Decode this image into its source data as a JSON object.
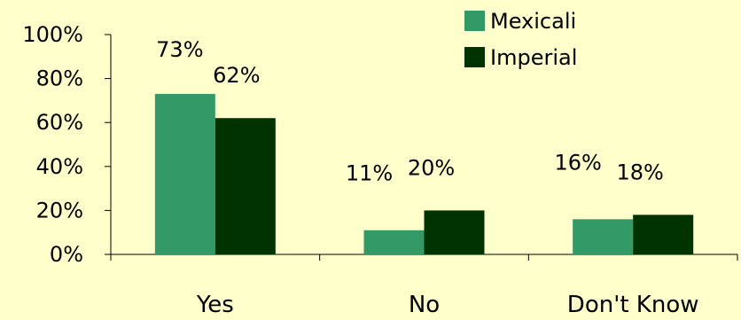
{
  "chart_data": {
    "type": "bar",
    "title": "",
    "xlabel": "",
    "ylabel": "",
    "categories": [
      "Yes",
      "No",
      "Don't Know"
    ],
    "series": [
      {
        "name": "Mexicali",
        "values": [
          73,
          11,
          16
        ],
        "color": "#339966"
      },
      {
        "name": "Imperial",
        "values": [
          62,
          20,
          18
        ],
        "color": "#003300"
      }
    ],
    "data_labels": [
      [
        "73%",
        "11%",
        "16%"
      ],
      [
        "62%",
        "20%",
        "18%"
      ]
    ],
    "ylim": [
      0,
      100
    ],
    "yticks": [
      0,
      20,
      40,
      60,
      80,
      100
    ],
    "ytick_labels": [
      "0%",
      "20%",
      "40%",
      "60%",
      "80%",
      "100%"
    ],
    "legend": "top-right",
    "grid": false,
    "background": "#ffffcc"
  }
}
